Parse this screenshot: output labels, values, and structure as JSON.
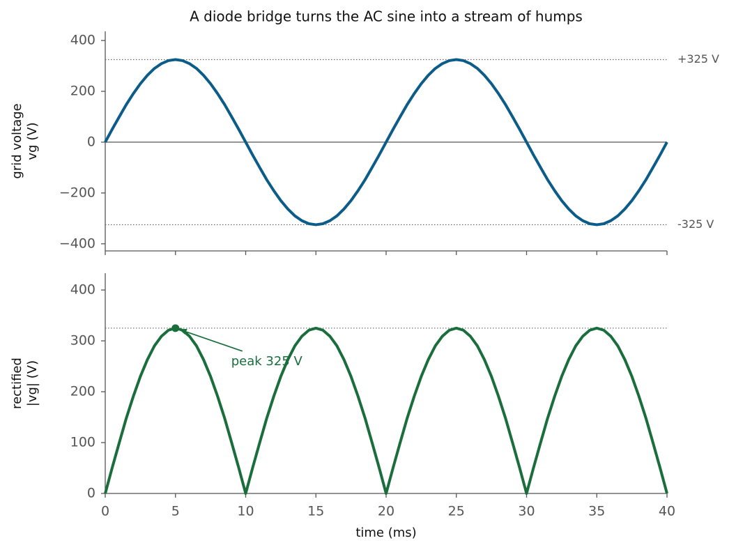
{
  "chart_data": [
    {
      "type": "line",
      "title": "A diode bridge turns the AC sine into a stream of humps",
      "ylabel": [
        "grid voltage",
        "vg  (V)"
      ],
      "color": "#0b5c88",
      "x": [
        0,
        0.5,
        1,
        1.5,
        2,
        2.5,
        3,
        3.5,
        4,
        4.5,
        5,
        5.5,
        6,
        6.5,
        7,
        7.5,
        8,
        8.5,
        9,
        9.5,
        10,
        10.5,
        11,
        11.5,
        12,
        12.5,
        13,
        13.5,
        14,
        14.5,
        15,
        15.5,
        16,
        16.5,
        17,
        17.5,
        18,
        18.5,
        19,
        19.5,
        20,
        20.5,
        21,
        21.5,
        22,
        22.5,
        23,
        23.5,
        24,
        24.5,
        25,
        25.5,
        26,
        26.5,
        27,
        27.5,
        28,
        28.5,
        29,
        29.5,
        30,
        30.5,
        31,
        31.5,
        32,
        32.5,
        33,
        33.5,
        34,
        34.5,
        35,
        35.5,
        36,
        36.5,
        37,
        37.5,
        38,
        38.5,
        39,
        39.5,
        40
      ],
      "values": [
        0,
        51,
        100,
        148,
        191,
        230,
        263,
        290,
        309,
        321,
        325,
        321,
        309,
        290,
        263,
        230,
        191,
        148,
        100,
        51,
        0,
        -51,
        -100,
        -148,
        -191,
        -230,
        -263,
        -290,
        -309,
        -321,
        -325,
        -321,
        -309,
        -290,
        -263,
        -230,
        -191,
        -148,
        -100,
        -51,
        0,
        51,
        100,
        148,
        191,
        230,
        263,
        290,
        309,
        321,
        325,
        321,
        309,
        290,
        263,
        230,
        191,
        148,
        100,
        51,
        0,
        -51,
        -100,
        -148,
        -191,
        -230,
        -263,
        -290,
        -309,
        -321,
        -325,
        -321,
        -309,
        -290,
        -263,
        -230,
        -191,
        -148,
        -100,
        -51,
        0
      ],
      "xlim": [
        0,
        40
      ],
      "xticks": [
        0,
        5,
        10,
        15,
        20,
        25,
        30,
        35,
        40
      ],
      "xtick_labels": false,
      "ylim": [
        -428,
        436
      ],
      "yticks": [
        {
          "value": -400,
          "label": "−400"
        },
        {
          "value": -200,
          "label": "−200"
        },
        0,
        200,
        400
      ],
      "zero_line": true,
      "hlines": [
        {
          "value": 325,
          "label": "+325 V"
        },
        {
          "value": -325,
          "label": "-325 V"
        }
      ]
    },
    {
      "type": "line",
      "ylabel": [
        "rectified",
        "|vg|  (V)"
      ],
      "xlabel": "time  (ms)",
      "color": "#1a6e3c",
      "x": [
        0,
        0.5,
        1,
        1.5,
        2,
        2.5,
        3,
        3.5,
        4,
        4.5,
        5,
        5.5,
        6,
        6.5,
        7,
        7.5,
        8,
        8.5,
        9,
        9.5,
        10,
        10.5,
        11,
        11.5,
        12,
        12.5,
        13,
        13.5,
        14,
        14.5,
        15,
        15.5,
        16,
        16.5,
        17,
        17.5,
        18,
        18.5,
        19,
        19.5,
        20,
        20.5,
        21,
        21.5,
        22,
        22.5,
        23,
        23.5,
        24,
        24.5,
        25,
        25.5,
        26,
        26.5,
        27,
        27.5,
        28,
        28.5,
        29,
        29.5,
        30,
        30.5,
        31,
        31.5,
        32,
        32.5,
        33,
        33.5,
        34,
        34.5,
        35,
        35.5,
        36,
        36.5,
        37,
        37.5,
        38,
        38.5,
        39,
        39.5,
        40
      ],
      "values": [
        0,
        51,
        100,
        148,
        191,
        230,
        263,
        290,
        309,
        321,
        325,
        321,
        309,
        290,
        263,
        230,
        191,
        148,
        100,
        51,
        0,
        51,
        100,
        148,
        191,
        230,
        263,
        290,
        309,
        321,
        325,
        321,
        309,
        290,
        263,
        230,
        191,
        148,
        100,
        51,
        0,
        51,
        100,
        148,
        191,
        230,
        263,
        290,
        309,
        321,
        325,
        321,
        309,
        290,
        263,
        230,
        191,
        148,
        100,
        51,
        0,
        51,
        100,
        148,
        191,
        230,
        263,
        290,
        309,
        321,
        325,
        321,
        309,
        290,
        263,
        230,
        191,
        148,
        100,
        51,
        0
      ],
      "xlim": [
        0,
        40
      ],
      "xticks": [
        0,
        5,
        10,
        15,
        20,
        25,
        30,
        35,
        40
      ],
      "xtick_labels": true,
      "ylim": [
        0,
        433
      ],
      "yticks": [
        0,
        100,
        200,
        300,
        400
      ],
      "zero_line": false,
      "hlines": [
        325
      ],
      "annotation": {
        "text": "peak 325 V",
        "x": 5,
        "y": 325
      }
    }
  ]
}
